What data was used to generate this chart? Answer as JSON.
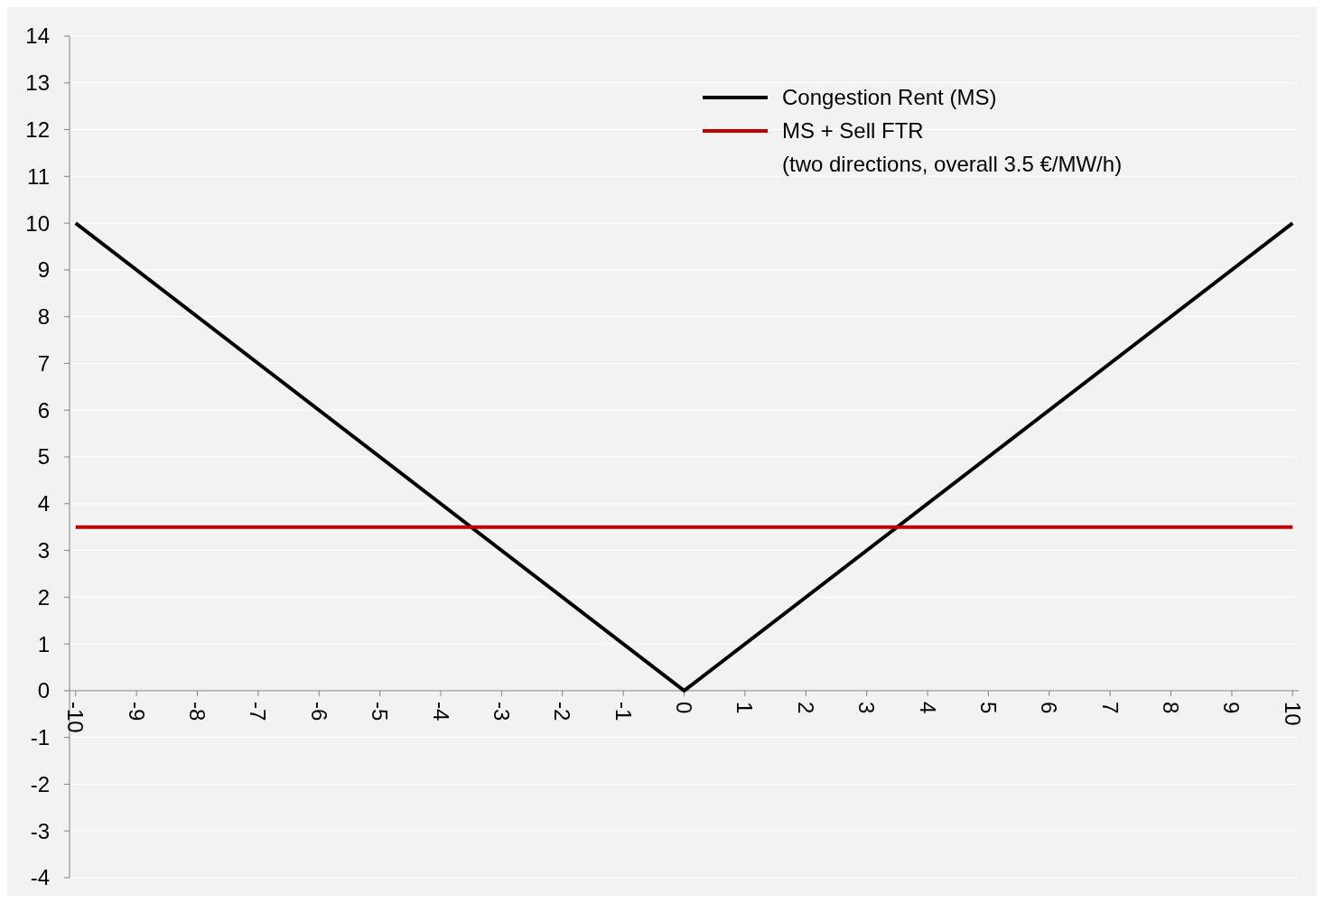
{
  "chart_data": {
    "type": "line",
    "xlim": [
      -10.1,
      10.1
    ],
    "xticks": [
      -10,
      -9,
      -8,
      -7,
      -6,
      -5,
      -4,
      -3,
      -2,
      -1,
      0,
      1,
      2,
      3,
      4,
      5,
      6,
      7,
      8,
      9,
      10
    ],
    "ylim": [
      -4,
      14
    ],
    "yticks": [
      -4,
      -3,
      -2,
      -1,
      0,
      1,
      2,
      3,
      4,
      5,
      6,
      7,
      8,
      9,
      10,
      11,
      12,
      13,
      14
    ],
    "grid": "y",
    "legend": "top right",
    "marker": "none",
    "line_style": "solid",
    "series": [
      {
        "name": "Congestion Rent (MS)",
        "color": "#000000",
        "x": [
          -10,
          0,
          10
        ],
        "values": [
          10,
          0,
          10
        ]
      },
      {
        "name": "MS + Sell FTR\n(two directions, overall 3.5 €/MW/h)",
        "color": "#c00000",
        "x": [
          -10,
          10
        ],
        "values": [
          3.5,
          3.5
        ]
      }
    ]
  }
}
